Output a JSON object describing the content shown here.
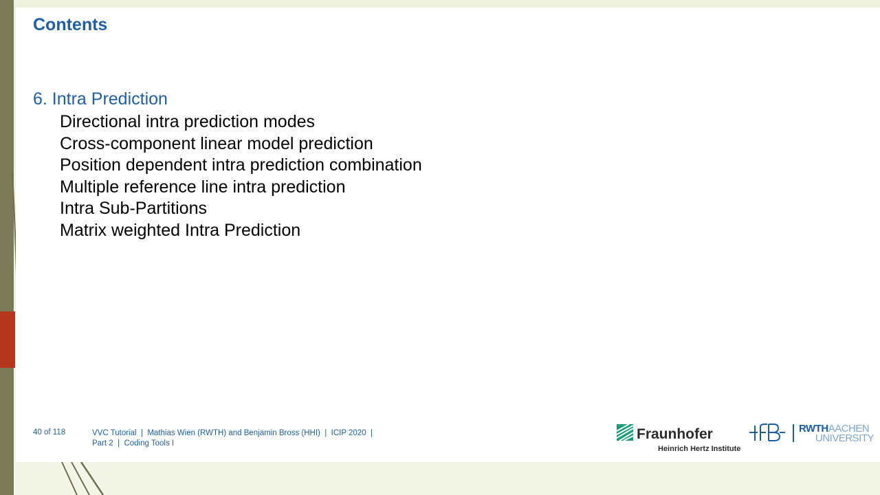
{
  "slide": {
    "title": "Contents",
    "section_heading": "6. Intra Prediction",
    "items": [
      "Directional intra prediction modes",
      "Cross-component linear model prediction",
      "Position dependent intra prediction combination",
      "Multiple reference line intra prediction",
      "Intra Sub-Partitions",
      "Matrix weighted Intra Prediction"
    ]
  },
  "footer": {
    "page": "40 of 118",
    "line1": "VVC Tutorial  |  Mathias Wien (RWTH) and Benjamin Bross (HHI)  |  ICIP 2020  |",
    "line2": "Part 2  |  Coding Tools I"
  },
  "logos": {
    "fraunhofer_name": "Fraunhofer",
    "fraunhofer_sub": "Heinrich Hertz Institute",
    "lfb": "LfB",
    "rwth_bold": "RWTH",
    "rwth_light": "AACHEN",
    "rwth_sub": "UNIVERSITY"
  },
  "colors": {
    "title": "#1f5fa8",
    "body_text": "#000000",
    "accent_bar": "#b5361a",
    "left_strip": "#7a7a58",
    "background": "#eef2dc"
  }
}
